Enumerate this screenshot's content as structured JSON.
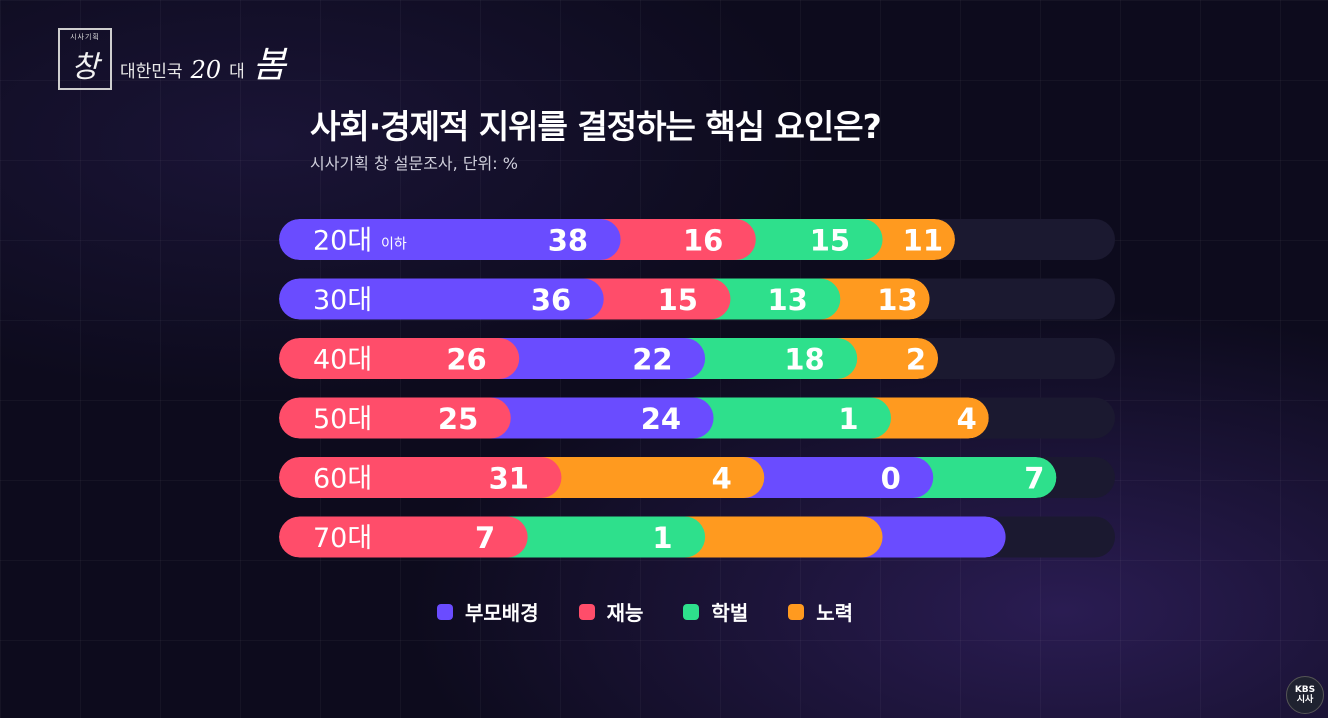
{
  "logo": {
    "small": "시사기획",
    "char": "창",
    "series": "대한민국",
    "num": "20",
    "unit": "대",
    "tail": "봄"
  },
  "header": {
    "title": "사회·경제적 지위를 결정하는 핵심 요인은?",
    "subtitle": "시사기획 창 설문조사, 단위: %"
  },
  "broadcaster": {
    "line1": "KBS",
    "line2": "시사"
  },
  "chart_data": {
    "type": "bar",
    "stacked": true,
    "orientation": "horizontal",
    "unit": "%",
    "categories": [
      "20대",
      "30대",
      "40대",
      "50대",
      "60대",
      "70대"
    ],
    "category_suffix": [
      "이하",
      "",
      "",
      "",
      "",
      ""
    ],
    "series": [
      {
        "name": "부모배경",
        "color": "#6a4cff",
        "values": [
          38,
          36,
          22,
          24,
          20,
          17
        ]
      },
      {
        "name": "재능",
        "color": "#ff4d6a",
        "values": [
          16,
          15,
          26,
          25,
          31,
          27
        ]
      },
      {
        "name": "학벌",
        "color": "#2ee08c",
        "values": [
          15,
          13,
          18,
          21,
          17,
          21
        ]
      },
      {
        "name": "노력",
        "color": "#ff9a1f",
        "values": [
          11,
          13,
          12,
          14,
          24,
          21
        ]
      }
    ],
    "segment_order": [
      [
        0,
        1,
        2,
        3
      ],
      [
        0,
        1,
        2,
        3
      ],
      [
        1,
        0,
        2,
        3
      ],
      [
        1,
        0,
        2,
        3
      ],
      [
        1,
        3,
        0,
        2
      ],
      [
        1,
        2,
        3,
        0
      ]
    ],
    "value_labels_visible": [
      [
        "38",
        "16",
        "15",
        "11"
      ],
      [
        "36",
        "15",
        "13",
        "13"
      ],
      [
        "26",
        "22",
        "18",
        "2"
      ],
      [
        "25",
        "24",
        "1",
        "4"
      ],
      [
        "31",
        "4",
        "0",
        "7"
      ],
      [
        "7",
        "1",
        "",
        ""
      ]
    ],
    "xlim": [
      0,
      100
    ],
    "legend_position": "bottom"
  }
}
